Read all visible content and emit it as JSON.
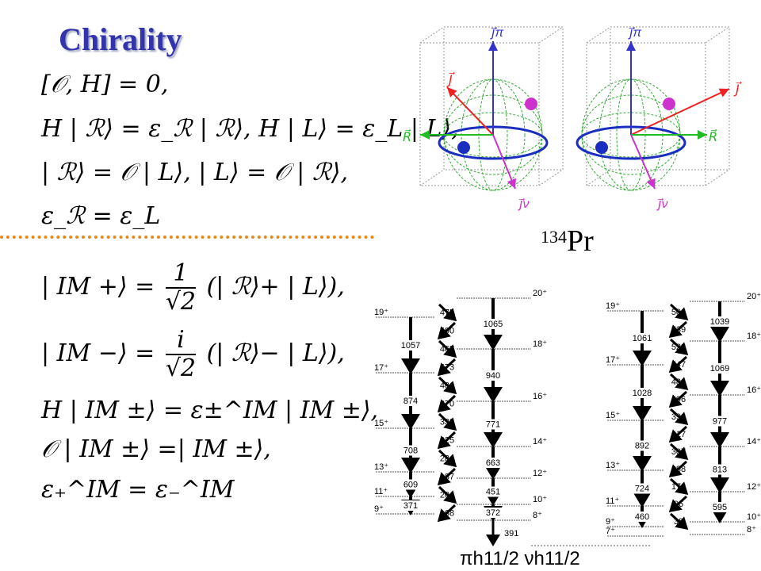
{
  "title": "Chirality",
  "equations": {
    "commutator": "[𝒪, H] = 0,",
    "eigen": "H | ℛ⟩ = ε_ℛ | ℛ⟩, H | L⟩ = ε_L | L⟩,",
    "mapping": "| ℛ⟩ = 𝒪 | L⟩, | L⟩ = 𝒪 | ℛ⟩,",
    "degenerate": "ε_ℛ = ε_L",
    "im_plus_lhs": "| IM +⟩ =",
    "im_plus_num": "1",
    "im_plus_den": "√2",
    "im_plus_rhs": "(| ℛ⟩+ | L⟩),",
    "im_minus_lhs": "| IM −⟩ =",
    "im_minus_num": "i",
    "im_minus_den": "√2",
    "im_minus_rhs": "(| ℛ⟩− | L⟩),",
    "h_im": "H | IM ±⟩ = ε±^IM | IM ±⟩,",
    "o_im": "𝒪 | IM ±⟩ =| IM ±⟩,",
    "eps_im": "ε₊^IM = ε₋^IM"
  },
  "nucleus": {
    "mass": "134",
    "symbol": "Pr"
  },
  "spheres": {
    "labels": {
      "j_pi": "j⃗π",
      "j_nu": "j⃗ν",
      "J": "J⃗",
      "R": "R⃗"
    },
    "colors": {
      "j_pi": "#3333cc",
      "j_nu": "#cc33cc",
      "J": "#ee2222",
      "R": "#22bb22",
      "equator": "#1a2fbf",
      "mesh": "#33aa33"
    }
  },
  "level_scheme": {
    "footer": "πh11/2 νh11/2",
    "band1": {
      "spins": [
        "19⁺",
        "17⁺",
        "15⁺",
        "13⁺",
        "11⁺",
        "9⁺"
      ],
      "even_spins": [
        "20⁺",
        "18⁺",
        "16⁺",
        "14⁺",
        "12⁺",
        "10⁺",
        "8⁺"
      ],
      "e2_left": [
        "1057",
        "874",
        "708",
        "609",
        "371"
      ],
      "e2_right": [
        "1065",
        "940",
        "771",
        "663",
        "451",
        "372"
      ],
      "m1": [
        "475",
        "590",
        "467",
        "473",
        "401",
        "370",
        "338",
        "325",
        "284",
        "187",
        "204",
        "168"
      ],
      "link": "391"
    },
    "band2": {
      "spins": [
        "19⁺",
        "17⁺",
        "15⁺",
        "13⁺",
        "11⁺",
        "9⁺",
        "7⁺"
      ],
      "even_spins": [
        "20⁺",
        "18⁺",
        "16⁺",
        "14⁺",
        "12⁺",
        "10⁺",
        "8⁺"
      ],
      "e2_left": [
        "1061",
        "1028",
        "892",
        "724",
        "460"
      ],
      "e2_right": [
        "1039",
        "1069",
        "977",
        "813",
        "595"
      ],
      "m1": [
        "500",
        "539",
        "522",
        "547",
        "481",
        "496",
        "396",
        "417",
        "307",
        "288",
        "172",
        "96",
        "38"
      ]
    }
  }
}
